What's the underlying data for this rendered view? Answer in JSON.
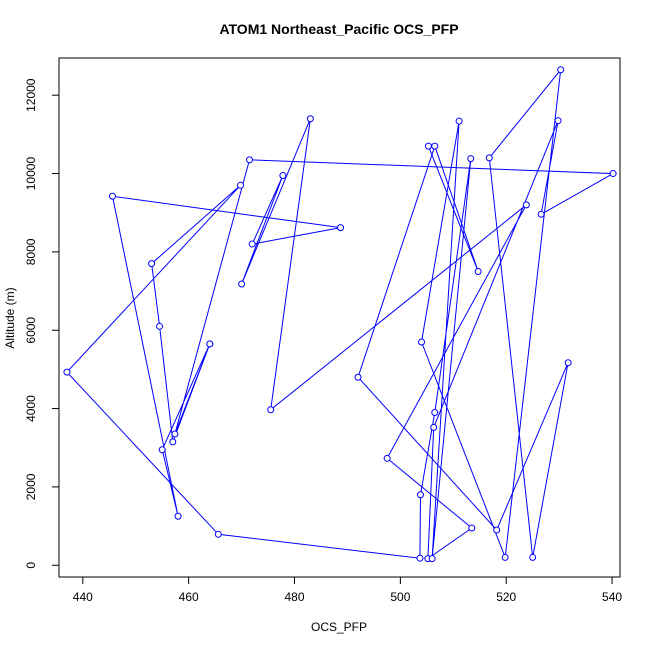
{
  "chart_data": {
    "type": "line",
    "title": "ATOM1 Northeast_Pacific OCS_PFP",
    "xlabel": "OCS_PFP",
    "ylabel": "Altitude (m)",
    "xlim": [
      435.5,
      541.5
    ],
    "ylim": [
      -300,
      12950
    ],
    "xticks": [
      440,
      460,
      480,
      500,
      520,
      540
    ],
    "yticks": [
      0,
      2000,
      4000,
      6000,
      8000,
      10000,
      12000
    ],
    "grid": false,
    "legend": "none",
    "series": [
      {
        "color": "#0000ff",
        "markers": "open-circle",
        "x": [
          464,
          455,
          458,
          445.6,
          488.7,
          472,
          477.8,
          470,
          483,
          475.5,
          523.8,
          497.5,
          513.5,
          505.2,
          506.3,
          529.8,
          526.6,
          540.2,
          471.5,
          457.4,
          464,
          457,
          454.5,
          453,
          469.8,
          437,
          465.6,
          503.7,
          503.8,
          506.5,
          513.3,
          506,
          511.1,
          504,
          519.8,
          530.3,
          516.8,
          525,
          531.7,
          518.2,
          492,
          506.5,
          514.7,
          505.3
        ],
        "y": [
          5650,
          2950,
          1250,
          9420,
          8620,
          8200,
          9950,
          7180,
          11400,
          3970,
          9200,
          2730,
          950,
          170,
          3520,
          11350,
          8960,
          10000,
          10350,
          3350,
          5650,
          3150,
          6100,
          7700,
          9700,
          4930,
          790,
          180,
          1800,
          3900,
          10380,
          170,
          11340,
          5700,
          200,
          12650,
          10400,
          200,
          5170,
          900,
          4800,
          10700,
          7500,
          10700
        ]
      }
    ]
  }
}
